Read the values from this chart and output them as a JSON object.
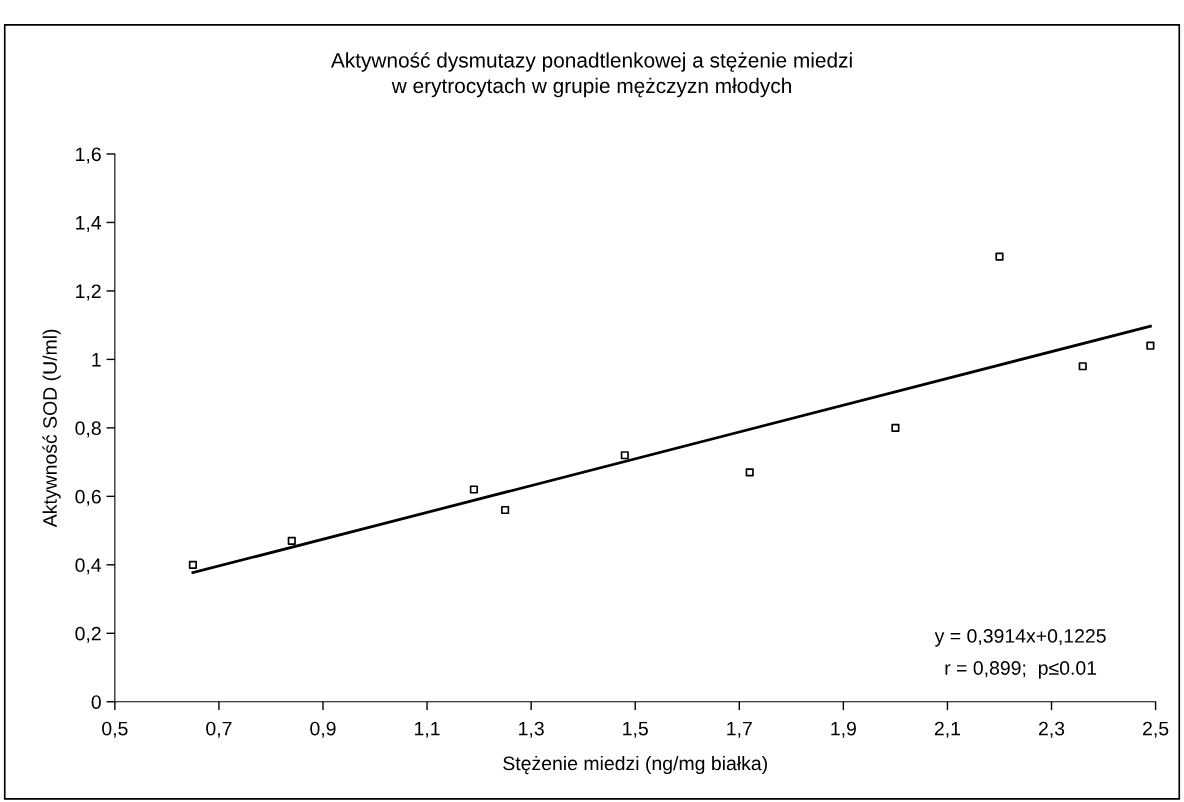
{
  "chart_data": {
    "type": "scatter",
    "title": "Aktywność dysmutazy ponadtlenkowej a stężenie miedzi\nw erytrocytach w grupie mężczyzn młodych",
    "xlabel": "Stężenie miedzi (ng/mg białka)",
    "ylabel": "Aktywność SOD (U/ml)",
    "series": [
      {
        "color": "#000000",
        "marker": "square",
        "x": [
          0.65,
          0.84,
          1.19,
          1.25,
          1.48,
          1.72,
          2.0,
          2.2,
          2.36,
          2.49
        ],
        "values": [
          0.4,
          0.47,
          0.62,
          0.56,
          0.72,
          0.67,
          0.8,
          1.3,
          0.98,
          1.04
        ]
      },
      {
        "type": "line",
        "color": "#000000",
        "marker": "none",
        "line_style": "solid",
        "x": [
          0.65,
          2.49
        ],
        "values": [
          0.377,
          1.097
        ]
      }
    ],
    "annotations": [
      "y = 0,3914x+0,1225",
      "r = 0,899;  p≤0.01"
    ],
    "xlim": [
      0.5,
      2.5
    ],
    "ylim": [
      0,
      1.6
    ],
    "xticks": [
      {
        "value": 0.5,
        "label": "0,5"
      },
      {
        "value": 0.7,
        "label": "0,7"
      },
      {
        "value": 0.9,
        "label": "0,9"
      },
      {
        "value": 1.1,
        "label": "1,1"
      },
      {
        "value": 1.3,
        "label": "1,3"
      },
      {
        "value": 1.5,
        "label": "1,5"
      },
      {
        "value": 1.7,
        "label": "1,7"
      },
      {
        "value": 1.9,
        "label": "1,9"
      },
      {
        "value": 2.1,
        "label": "2,1"
      },
      {
        "value": 2.3,
        "label": "2,3"
      },
      {
        "value": 2.5,
        "label": "2,5"
      }
    ],
    "yticks": [
      0,
      {
        "value": 0.2,
        "label": "0,2"
      },
      {
        "value": 0.4,
        "label": "0,4"
      },
      {
        "value": 0.6,
        "label": "0,6"
      },
      {
        "value": 0.8,
        "label": "0,8"
      },
      1,
      {
        "value": 1.2,
        "label": "1,2"
      },
      {
        "value": 1.4,
        "label": "1,4"
      },
      {
        "value": 1.6,
        "label": "1,6"
      }
    ],
    "grid": false,
    "legend": false
  }
}
